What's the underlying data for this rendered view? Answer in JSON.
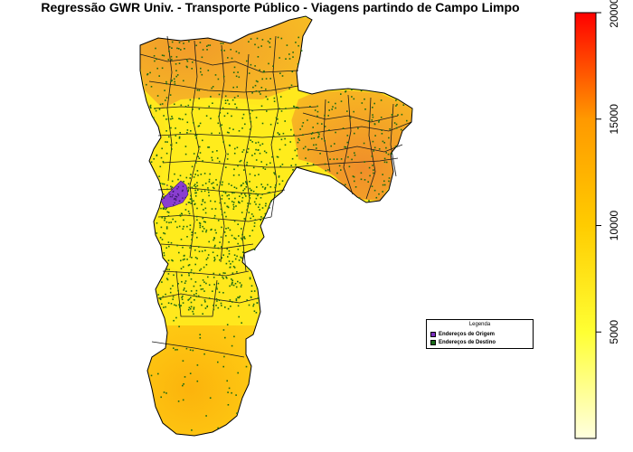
{
  "title": "Regressão GWR Univ. - Transporte Público - Viagens partindo de Campo Limpo",
  "legend": {
    "title": "Legenda",
    "items": [
      {
        "label": "Endereços de Origem",
        "color": "#7b2fbe"
      },
      {
        "label": "Endereços de Destino",
        "color": "#1a6b1a"
      }
    ]
  },
  "colorbar": {
    "min": 0,
    "max": 20000,
    "ticks": [
      {
        "value": 5000,
        "label": "5000"
      },
      {
        "value": 10000,
        "label": "10000"
      },
      {
        "value": 15000,
        "label": "15000"
      },
      {
        "value": 20000,
        "label": "20000"
      }
    ],
    "colors": [
      "#ffffe0",
      "#ffff33",
      "#ffcc00",
      "#ff9900",
      "#ff0000"
    ]
  },
  "map_colors": {
    "north": "#f2a327",
    "east": "#f5a623",
    "center": "#ffec1c",
    "south": "#ffd516",
    "far_south": "#fdc10e",
    "origin": "#8a3ed0",
    "destination": "#1d6b12"
  }
}
